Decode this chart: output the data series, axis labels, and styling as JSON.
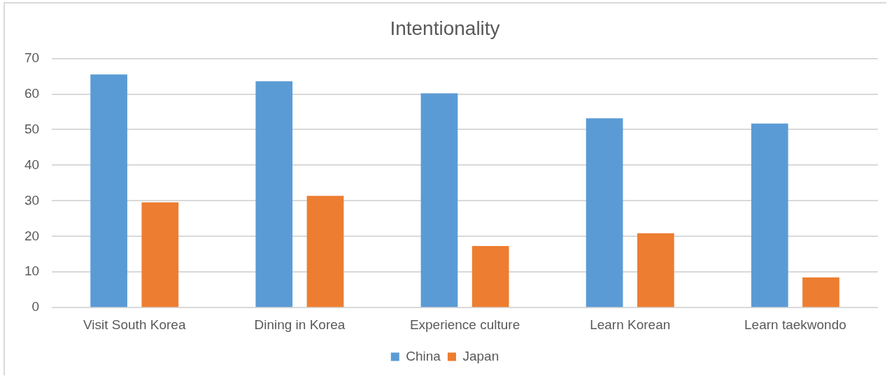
{
  "chart_data": {
    "type": "bar",
    "title": "Intentionality",
    "categories": [
      "Visit South Korea",
      "Dining in Korea",
      "Experience culture",
      "Learn Korean",
      "Learn taekwondo"
    ],
    "series": [
      {
        "name": "China",
        "color": "#5b9bd5",
        "values": [
          65.5,
          63.6,
          60.2,
          53.2,
          51.7
        ]
      },
      {
        "name": "Japan",
        "color": "#ed7d31",
        "values": [
          29.6,
          31.4,
          17.3,
          20.9,
          8.5
        ]
      }
    ],
    "ylim": [
      0,
      70
    ],
    "yticks": [
      0,
      10,
      20,
      30,
      40,
      50,
      60,
      70
    ],
    "grid": "y",
    "legend": "bottom"
  }
}
